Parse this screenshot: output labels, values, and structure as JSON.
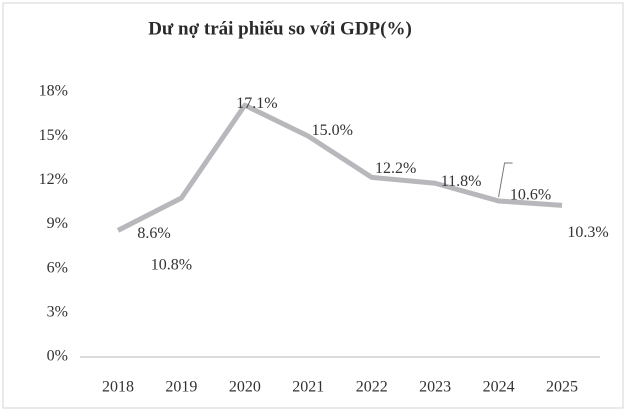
{
  "chart_data": {
    "type": "line",
    "title": "Dư nợ trái phiếu so với GDP(%)",
    "categories": [
      "2018",
      "2019",
      "2020",
      "2021",
      "2022",
      "2023",
      "2024",
      "2025"
    ],
    "series": [
      {
        "name": "Dư nợ trái phiếu so với GDP",
        "color": "#b8b8bc",
        "values": [
          8.6,
          10.8,
          17.1,
          15.0,
          12.2,
          11.8,
          10.6,
          10.3
        ],
        "value_labels": [
          "8.6%",
          "10.8%",
          "17.1%",
          "15.0%",
          "12.2%",
          "11.8%",
          "10.6%",
          "10.3%"
        ]
      }
    ],
    "ylim": [
      0,
      18
    ],
    "yticks": [
      {
        "value": 0,
        "label": "0%"
      },
      {
        "value": 3,
        "label": "3%"
      },
      {
        "value": 6,
        "label": "6%"
      },
      {
        "value": 9,
        "label": "9%"
      },
      {
        "value": 12,
        "label": "12%"
      },
      {
        "value": 15,
        "label": "15%"
      },
      {
        "value": 18,
        "label": "18%"
      }
    ],
    "grid": false
  }
}
